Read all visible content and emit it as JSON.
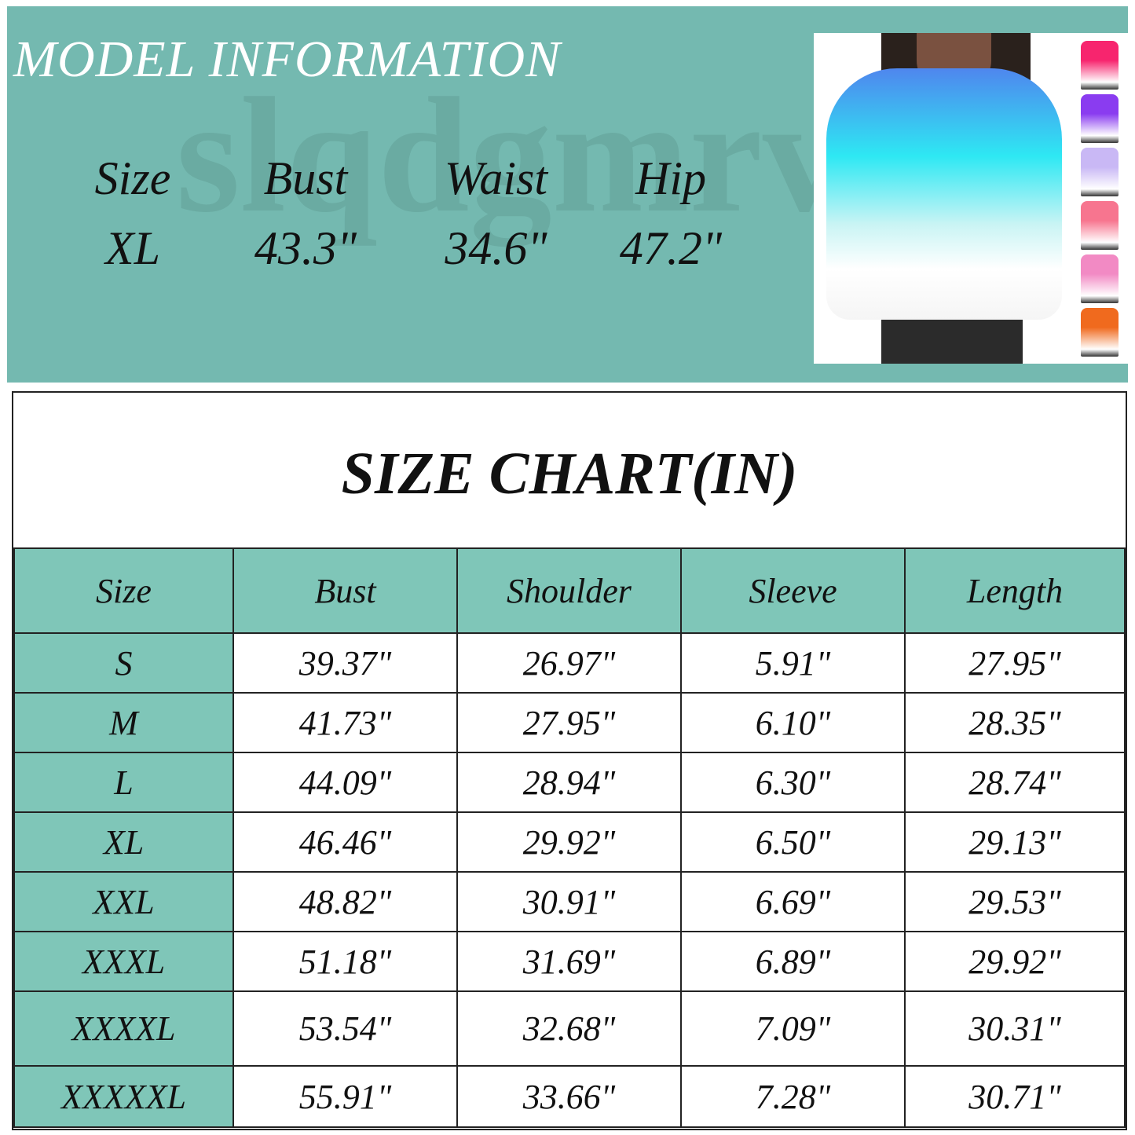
{
  "model_information": {
    "title": "MODEL INFORMATION",
    "watermark": "slqdgmrvz",
    "headers": [
      "Size",
      "Bust",
      "Waist",
      "Hip"
    ],
    "values": [
      "XL",
      "43.3\"",
      "34.6\"",
      "47.2\""
    ]
  },
  "product_photo": {
    "color_swatches": [
      "#f7256e",
      "#8a3cf0",
      "#c9b8f5",
      "#f7758f",
      "#f28ac4",
      "#f06a1e"
    ]
  },
  "size_chart": {
    "title": "SIZE CHART(IN)",
    "colors": {
      "header_bg": "#7fc6b8",
      "banner_bg": "#74b9b0"
    },
    "columns": [
      "Size",
      "Bust",
      "Shoulder",
      "Sleeve",
      "Length"
    ],
    "rows": [
      [
        "S",
        "39.37\"",
        "26.97\"",
        "5.91\"",
        "27.95\""
      ],
      [
        "M",
        "41.73\"",
        "27.95\"",
        "6.10\"",
        "28.35\""
      ],
      [
        "L",
        "44.09\"",
        "28.94\"",
        "6.30\"",
        "28.74\""
      ],
      [
        "XL",
        "46.46\"",
        "29.92\"",
        "6.50\"",
        "29.13\""
      ],
      [
        "XXL",
        "48.82\"",
        "30.91\"",
        "6.69\"",
        "29.53\""
      ],
      [
        "XXXL",
        "51.18\"",
        "31.69\"",
        "6.89\"",
        "29.92\""
      ],
      [
        "XXXXL",
        "53.54\"",
        "32.68\"",
        "7.09\"",
        "30.31\""
      ],
      [
        "XXXXXL",
        "55.91\"",
        "33.66\"",
        "7.28\"",
        "30.71\""
      ]
    ]
  }
}
